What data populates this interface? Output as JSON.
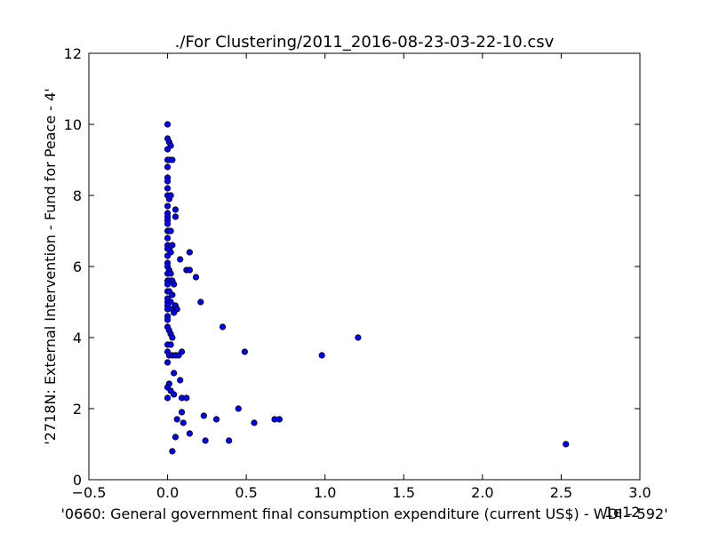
{
  "chart_data": {
    "type": "scatter",
    "title": "./For Clustering/2011_2016-08-23-03-22-10.csv",
    "xlabel": "'0660: General government final consumption expenditure  (current US$) - WDI - 592'",
    "ylabel": "'2718N: External Intervention - Fund for Peace - 4'",
    "x_offset_label": "1e12",
    "xlim": [
      -0.5,
      3.0
    ],
    "ylim": [
      0,
      12
    ],
    "x_ticks": [
      "−0.5",
      "0.0",
      "0.5",
      "1.0",
      "1.5",
      "2.0",
      "2.5",
      "3.0"
    ],
    "y_ticks": [
      "0",
      "2",
      "4",
      "6",
      "8",
      "10",
      "12"
    ],
    "grid": false,
    "marker_color": "#0000ff",
    "marker_edge": "#000000",
    "points": [
      [
        0.0,
        10.0
      ],
      [
        0.0,
        9.6
      ],
      [
        0.01,
        9.5
      ],
      [
        0.02,
        9.4
      ],
      [
        0.0,
        9.3
      ],
      [
        0.0,
        9.0
      ],
      [
        0.01,
        9.0
      ],
      [
        0.03,
        9.0
      ],
      [
        0.0,
        8.8
      ],
      [
        0.0,
        8.5
      ],
      [
        0.0,
        8.4
      ],
      [
        0.0,
        8.2
      ],
      [
        0.0,
        8.0
      ],
      [
        0.01,
        7.9
      ],
      [
        0.02,
        8.0
      ],
      [
        0.0,
        7.7
      ],
      [
        0.0,
        7.5
      ],
      [
        0.0,
        7.4
      ],
      [
        0.0,
        7.3
      ],
      [
        0.0,
        7.2
      ],
      [
        0.0,
        7.0
      ],
      [
        0.01,
        7.0
      ],
      [
        0.02,
        7.0
      ],
      [
        0.0,
        6.8
      ],
      [
        0.0,
        6.6
      ],
      [
        0.0,
        6.5
      ],
      [
        0.01,
        6.5
      ],
      [
        0.02,
        6.4
      ],
      [
        0.03,
        6.6
      ],
      [
        0.0,
        6.3
      ],
      [
        0.0,
        6.1
      ],
      [
        0.0,
        6.0
      ],
      [
        0.01,
        5.9
      ],
      [
        0.0,
        5.8
      ],
      [
        0.02,
        5.8
      ],
      [
        0.0,
        5.6
      ],
      [
        0.01,
        5.6
      ],
      [
        0.03,
        5.6
      ],
      [
        0.0,
        5.5
      ],
      [
        0.0,
        5.3
      ],
      [
        0.01,
        5.3
      ],
      [
        0.04,
        5.5
      ],
      [
        0.03,
        5.2
      ],
      [
        0.0,
        5.1
      ],
      [
        0.0,
        5.0
      ],
      [
        0.02,
        5.0
      ],
      [
        0.0,
        4.9
      ],
      [
        0.0,
        4.8
      ],
      [
        0.03,
        4.8
      ],
      [
        0.05,
        4.9
      ],
      [
        0.06,
        4.8
      ],
      [
        0.04,
        4.7
      ],
      [
        0.0,
        4.6
      ],
      [
        0.0,
        4.5
      ],
      [
        0.0,
        4.3
      ],
      [
        0.01,
        4.2
      ],
      [
        0.02,
        4.1
      ],
      [
        0.03,
        4.0
      ],
      [
        0.0,
        3.8
      ],
      [
        0.02,
        3.8
      ],
      [
        0.0,
        3.6
      ],
      [
        0.01,
        3.5
      ],
      [
        0.03,
        3.5
      ],
      [
        0.05,
        3.5
      ],
      [
        0.07,
        3.5
      ],
      [
        0.09,
        3.6
      ],
      [
        0.0,
        3.3
      ],
      [
        0.04,
        3.0
      ],
      [
        0.08,
        2.8
      ],
      [
        0.01,
        2.7
      ],
      [
        0.0,
        2.6
      ],
      [
        0.02,
        2.5
      ],
      [
        0.04,
        2.4
      ],
      [
        0.0,
        2.3
      ],
      [
        0.09,
        2.3
      ],
      [
        0.12,
        2.3
      ],
      [
        0.09,
        1.9
      ],
      [
        0.06,
        1.7
      ],
      [
        0.1,
        1.6
      ],
      [
        0.05,
        1.2
      ],
      [
        0.14,
        1.3
      ],
      [
        0.03,
        0.8
      ],
      [
        0.05,
        7.6
      ],
      [
        0.05,
        7.4
      ],
      [
        0.14,
        6.4
      ],
      [
        0.08,
        6.2
      ],
      [
        0.12,
        5.9
      ],
      [
        0.14,
        5.9
      ],
      [
        0.18,
        5.7
      ],
      [
        0.21,
        5.0
      ],
      [
        0.35,
        4.3
      ],
      [
        0.49,
        3.6
      ],
      [
        0.98,
        3.5
      ],
      [
        1.21,
        4.0
      ],
      [
        0.23,
        1.8
      ],
      [
        0.31,
        1.7
      ],
      [
        0.24,
        1.1
      ],
      [
        0.39,
        1.1
      ],
      [
        0.45,
        2.0
      ],
      [
        0.55,
        1.6
      ],
      [
        0.68,
        1.7
      ],
      [
        0.71,
        1.7
      ],
      [
        2.53,
        1.0
      ]
    ]
  }
}
